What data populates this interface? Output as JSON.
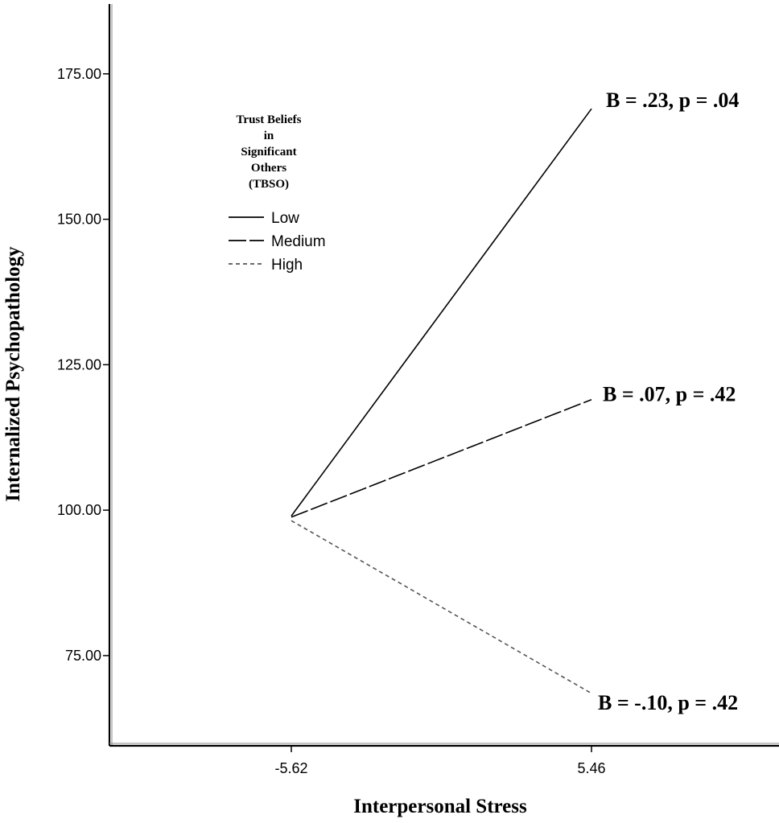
{
  "chart_data": {
    "type": "line",
    "xlabel": "Interpersonal Stress",
    "ylabel": "Internalized Psychopathology",
    "x": [
      -5.62,
      5.46
    ],
    "x_tick_labels": [
      "-5.62",
      "5.46"
    ],
    "y_ticks": [
      75,
      100,
      125,
      150,
      175
    ],
    "y_tick_labels": [
      "75.00",
      "100.00",
      "125.00",
      "150.00",
      "175.00"
    ],
    "ylim": [
      59.5,
      187
    ],
    "grid": false,
    "legend": {
      "title_lines": [
        "Trust Beliefs",
        "in",
        "Significant",
        "Others",
        "(TBSO)"
      ],
      "placement": "top-left"
    },
    "series": [
      {
        "name": "Low",
        "values": [
          99.0,
          169.0
        ],
        "dash": "solid",
        "color": "#000000",
        "annotation": "B = .23, p = .04"
      },
      {
        "name": "Medium",
        "values": [
          98.8,
          119.0
        ],
        "dash": "long-dash",
        "color": "#000000",
        "annotation": "B = .07, p = .42"
      },
      {
        "name": "High",
        "values": [
          98.2,
          68.5
        ],
        "dash": "short-dash",
        "color": "#555555",
        "annotation": "B = -.10, p = .42"
      }
    ]
  }
}
